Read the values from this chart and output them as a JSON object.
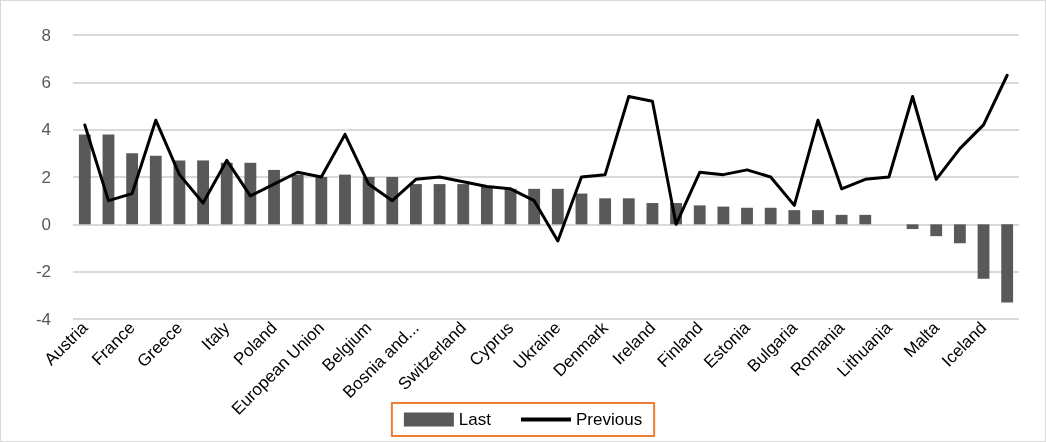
{
  "chart_data": {
    "type": "bar",
    "categories": [
      "Austria",
      null,
      "France",
      null,
      "Greece",
      null,
      "Italy",
      null,
      "Poland",
      null,
      "European Union",
      null,
      "Belgium",
      null,
      "Bosnia and...",
      null,
      "Switzerland",
      null,
      "Cyprus",
      null,
      "Ukraine",
      null,
      "Denmark",
      null,
      "Ireland",
      null,
      "Finland",
      null,
      "Estonia",
      null,
      "Bulgaria",
      null,
      "Romania",
      null,
      "Lithuania",
      null,
      "Malta",
      null,
      "Iceland",
      null
    ],
    "series": [
      {
        "name": "Last",
        "color": "#595959",
        "values": [
          3.8,
          3.8,
          3.0,
          2.9,
          2.7,
          2.7,
          2.6,
          2.6,
          2.3,
          2.1,
          2.0,
          2.1,
          2.0,
          2.0,
          1.7,
          1.7,
          1.7,
          1.6,
          1.5,
          1.5,
          1.5,
          1.3,
          1.1,
          1.1,
          0.9,
          0.9,
          0.8,
          0.75,
          0.7,
          0.7,
          0.6,
          0.6,
          0.4,
          0.4,
          0.0,
          -0.2,
          -0.5,
          -0.8,
          -2.3,
          -3.3
        ]
      },
      {
        "name": "Previous",
        "type": "line",
        "color": "#000000",
        "values": [
          4.2,
          1.0,
          1.3,
          4.4,
          2.1,
          0.9,
          2.7,
          1.2,
          1.7,
          2.2,
          2.0,
          3.8,
          1.7,
          1.0,
          1.9,
          2.0,
          1.8,
          1.6,
          1.5,
          1.0,
          -0.7,
          2.0,
          2.1,
          5.4,
          5.2,
          0.0,
          2.2,
          2.1,
          2.3,
          2.0,
          0.8,
          4.4,
          1.5,
          1.9,
          2.0,
          5.4,
          1.9,
          3.2,
          4.2,
          6.3
        ]
      }
    ],
    "ylim": [
      -4,
      8
    ],
    "yticks": [
      -4,
      -2,
      0,
      2,
      4,
      6,
      8
    ],
    "grid": "y",
    "legend": "bottom",
    "marker": "none",
    "line_style": "solid"
  }
}
